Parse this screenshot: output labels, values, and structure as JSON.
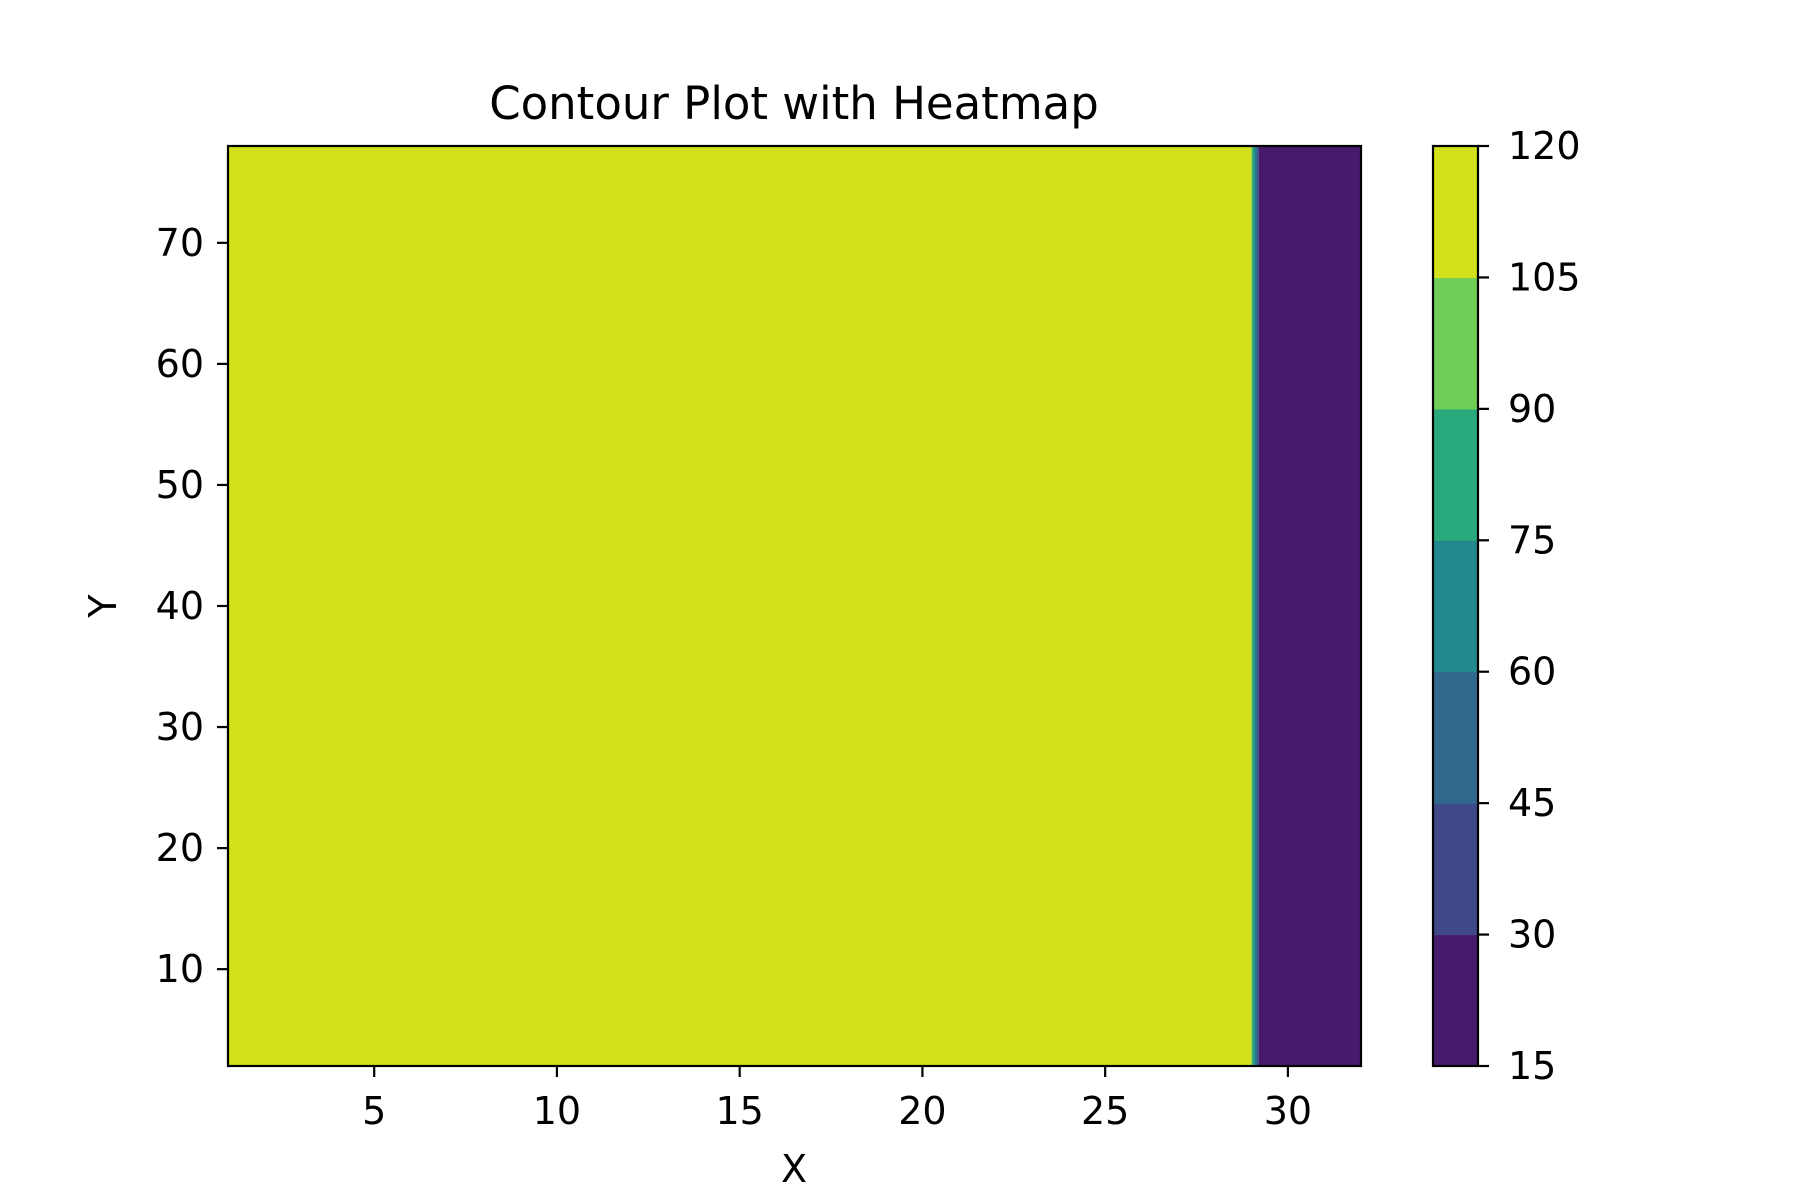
{
  "chart_data": {
    "type": "heatmap",
    "subtype": "filled-contour",
    "title": "Contour Plot with Heatmap",
    "xlabel": "X",
    "ylabel": "Y",
    "xlim": [
      1,
      32
    ],
    "ylim": [
      2,
      78
    ],
    "xticks": [
      5,
      10,
      15,
      20,
      25,
      30
    ],
    "yticks": [
      10,
      20,
      30,
      40,
      50,
      60,
      70
    ],
    "regions": [
      {
        "x_range": [
          1,
          29
        ],
        "y_range": [
          2,
          78
        ],
        "level": [
          105,
          120
        ]
      },
      {
        "x_range": [
          29,
          29.2
        ],
        "y_range": [
          2,
          78
        ],
        "level": [
          30,
          105
        ],
        "note_type": "transition"
      },
      {
        "x_range": [
          29.2,
          32
        ],
        "y_range": [
          2,
          78
        ],
        "level": [
          15,
          30
        ]
      }
    ],
    "colorbar": {
      "levels": [
        15,
        30,
        45,
        60,
        75,
        90,
        105,
        120
      ],
      "colors": [
        "#481a6c",
        "#3f4889",
        "#31688e",
        "#23888e",
        "#2aa97d",
        "#6ece58",
        "#d2e11b"
      ]
    },
    "grid": false,
    "colors": {
      "frame": "#000000",
      "background": "#ffffff"
    }
  }
}
